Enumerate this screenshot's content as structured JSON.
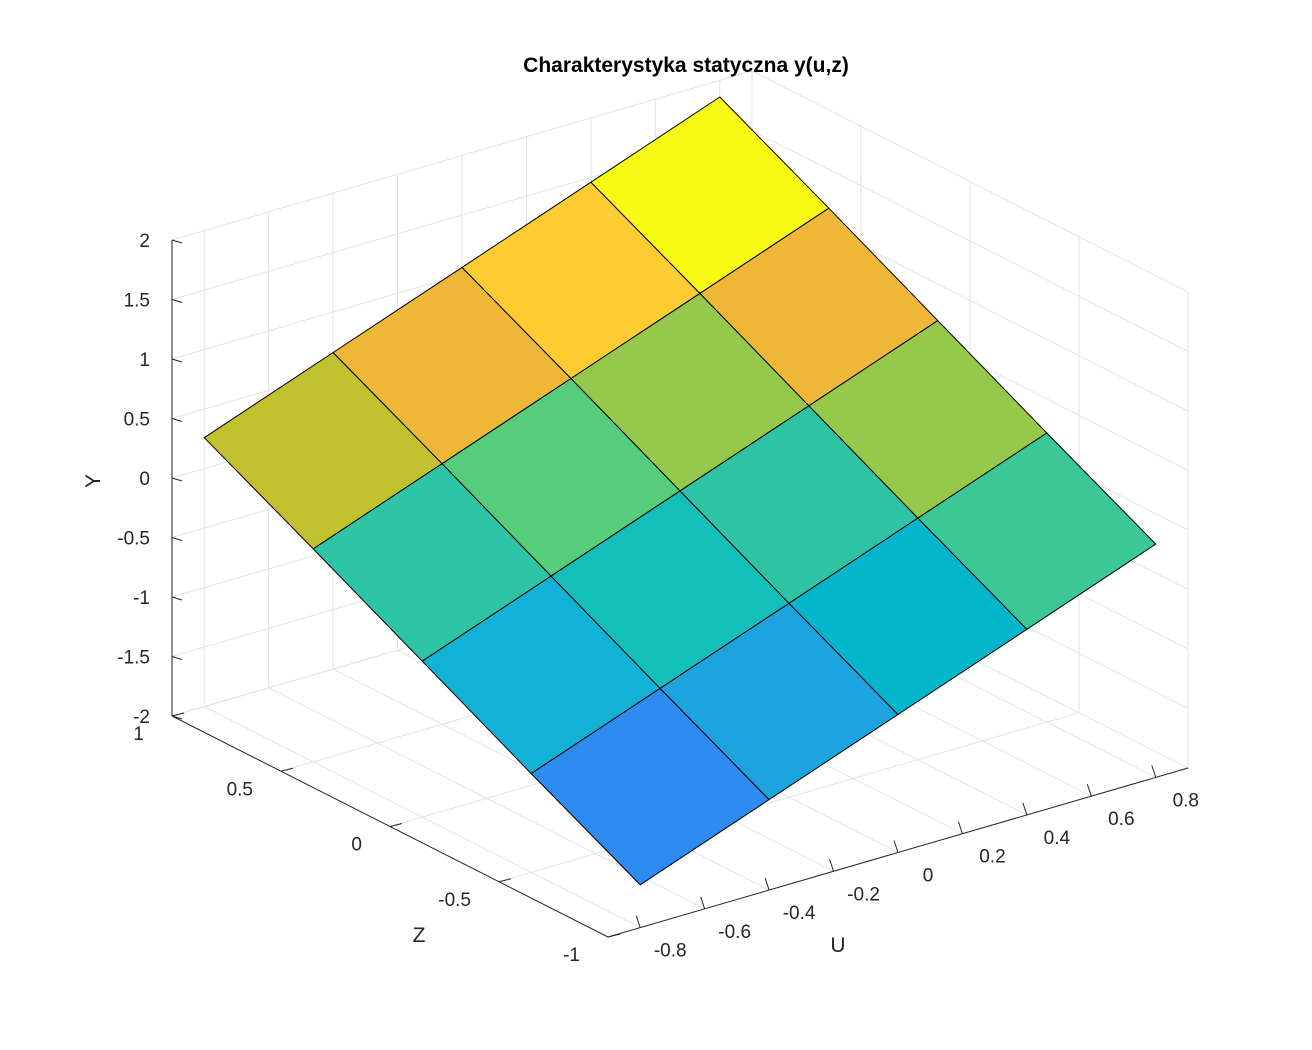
{
  "chart_data": {
    "type": "surface",
    "title": "Charakterystyka statyczna y(u,z)",
    "xlabel": "U",
    "ylabel": "Z",
    "zlabel": "Y",
    "xlim": [
      -0.9,
      0.9
    ],
    "ylim": [
      -1,
      1
    ],
    "zlim": [
      -2,
      2
    ],
    "xticks": [
      -0.8,
      -0.6,
      -0.4,
      -0.2,
      0,
      0.2,
      0.4,
      0.6,
      0.8
    ],
    "yticks": [
      -1,
      -0.5,
      0,
      0.5,
      1
    ],
    "zticks": [
      -2,
      -1.5,
      -1,
      -0.5,
      0,
      0.5,
      1,
      1.5,
      2
    ],
    "xtick_labels": [
      "-0.8",
      "-0.6",
      "-0.4",
      "-0.2",
      "0",
      "0.2",
      "0.4",
      "0.6",
      "0.8"
    ],
    "ytick_labels": [
      "-1",
      "-0.5",
      "0",
      "0.5",
      "1"
    ],
    "ztick_labels": [
      "-2",
      "-1.5",
      "-1",
      "-0.5",
      "0",
      "0.5",
      "1",
      "1.5",
      "2"
    ],
    "grid": true,
    "u": [
      -0.8,
      -0.4,
      0,
      0.4,
      0.8
    ],
    "z": [
      -1,
      -0.5,
      0,
      0.5,
      1
    ],
    "y": [
      [
        -1.64,
        -1.24,
        -0.84,
        -0.44,
        -0.04
      ],
      [
        -1.17,
        -0.77,
        -0.37,
        0.03,
        0.43
      ],
      [
        -0.69,
        -0.29,
        0.11,
        0.51,
        0.91
      ],
      [
        -0.21,
        0.19,
        0.59,
        0.99,
        1.39
      ],
      [
        0.26,
        0.66,
        1.06,
        1.46,
        1.86
      ]
    ],
    "y_rows_are": "z",
    "y_columns_are": "u",
    "patch_colors": [
      [
        "#2E8BEF",
        "#1DA3DE",
        "#03B6CC",
        "#3CC796"
      ],
      [
        "#12B1D6",
        "#14BFBA",
        "#2EC4A3",
        "#96C94A"
      ],
      [
        "#2DC5A5",
        "#55CD7A",
        "#94C94B",
        "#EFB738"
      ],
      [
        "#C0C12D",
        "#EFB738",
        "#FDCB32",
        "#F7FA15"
      ]
    ]
  }
}
